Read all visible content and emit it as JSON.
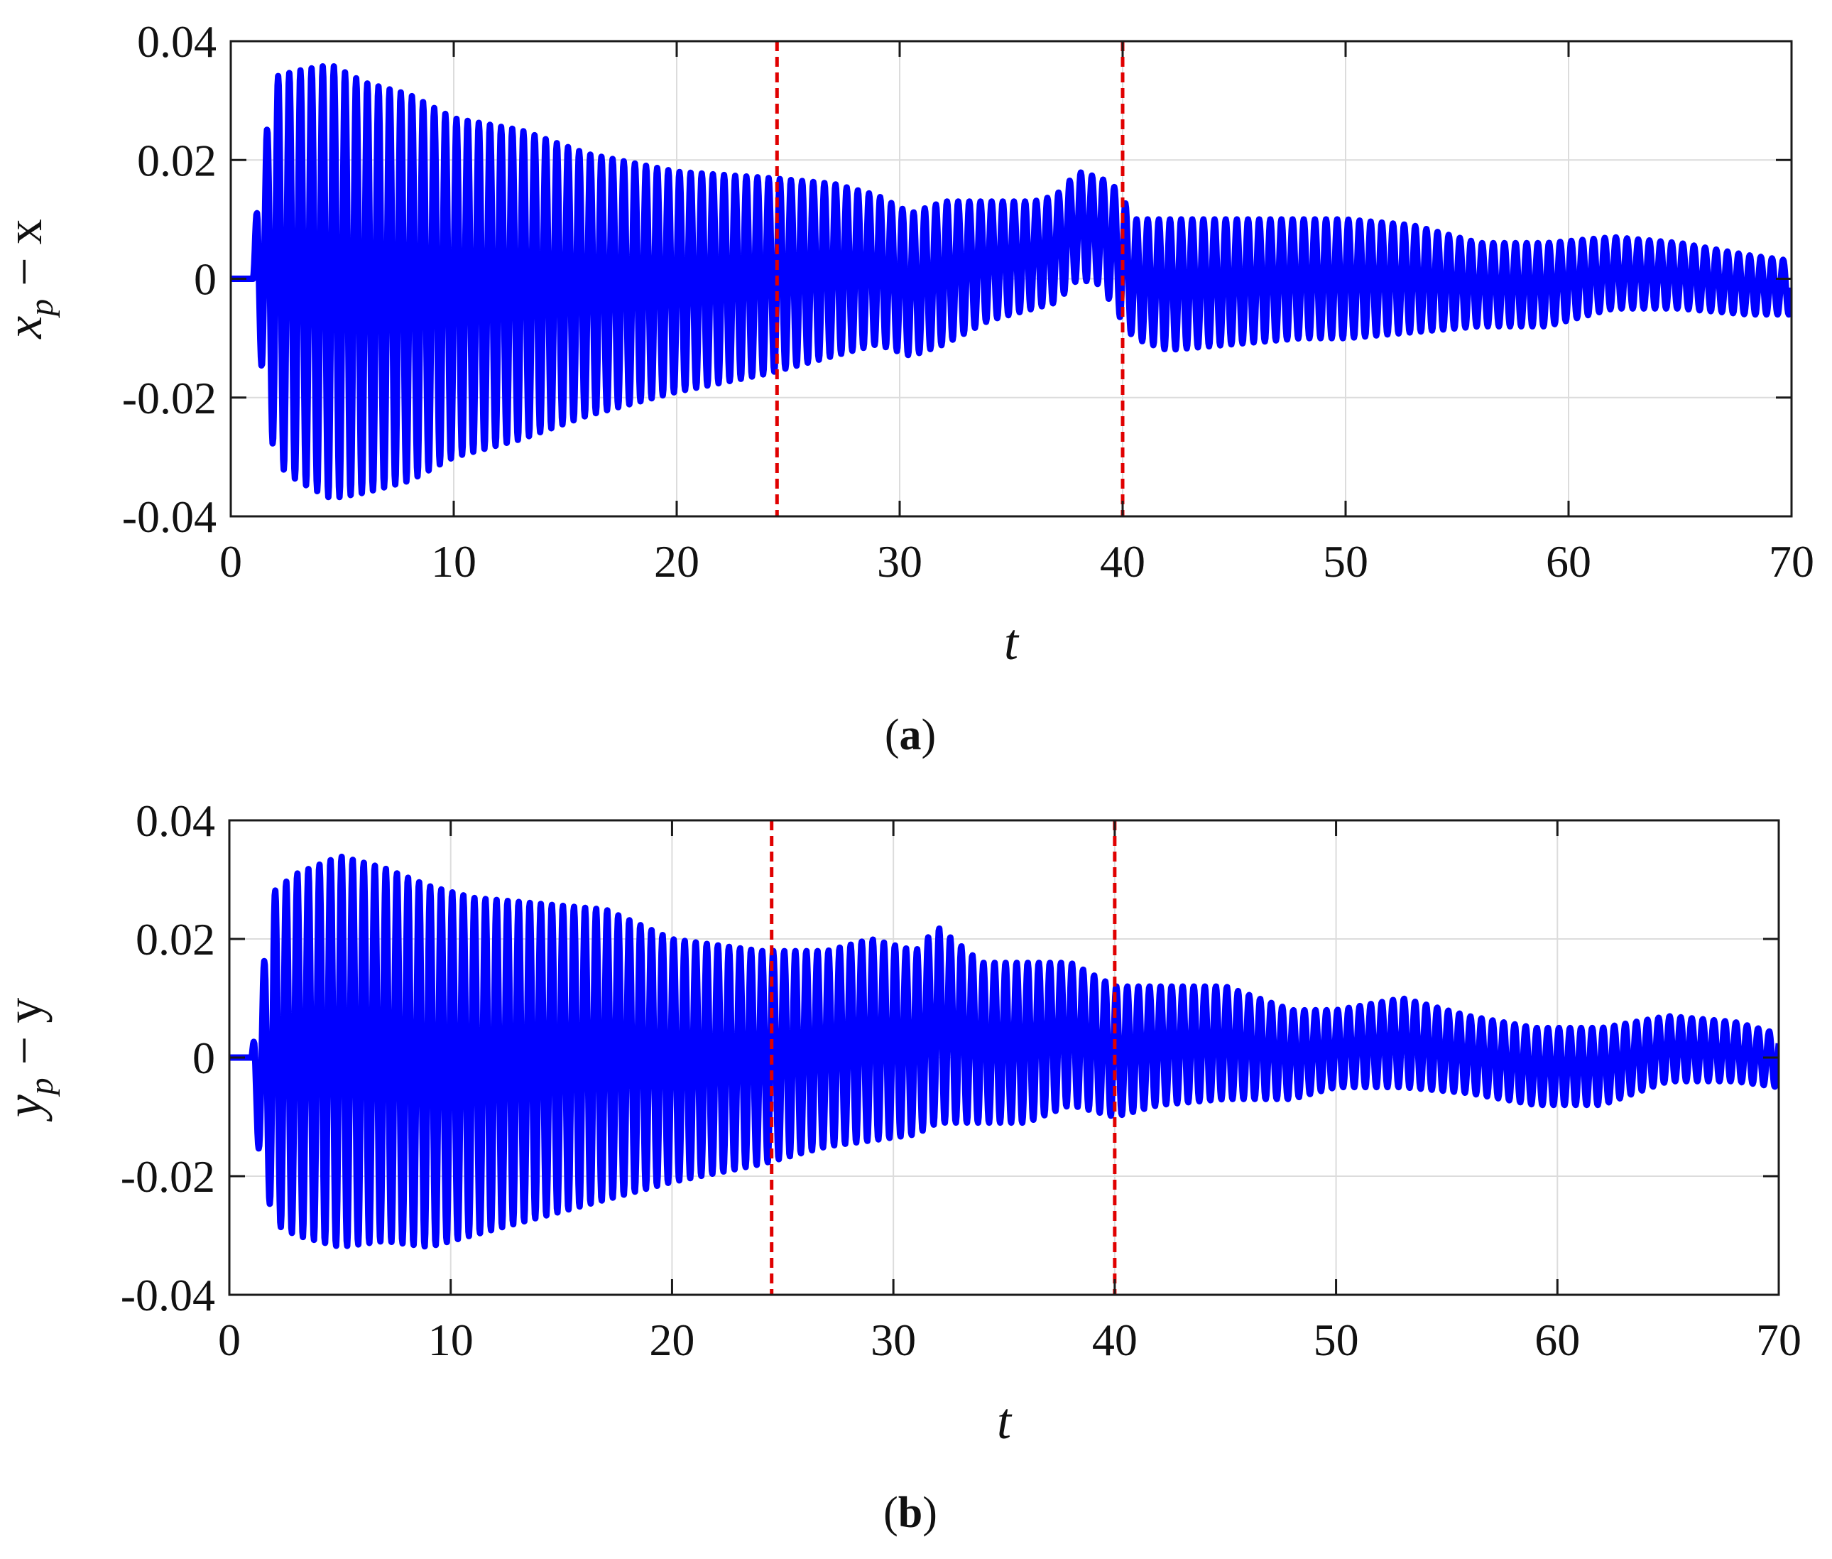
{
  "panels": [
    {
      "caption_letter": "a",
      "xlabel": "t",
      "ylabel_base": "x",
      "ylabel_sub": "p",
      "ylabel_rest": " − x"
    },
    {
      "caption_letter": "b",
      "xlabel": "t",
      "ylabel_base": "y",
      "ylabel_sub": "p",
      "ylabel_rest": " − y"
    }
  ],
  "colors": {
    "series": "#0000ff",
    "markers": "#e00000",
    "grid": "#dcdcdc",
    "axes": "#1a1a1a"
  },
  "chart_data": [
    {
      "type": "line",
      "xlabel": "t",
      "ylabel": "x_p − x",
      "xlim": [
        0,
        70
      ],
      "ylim": [
        -0.04,
        0.04
      ],
      "xticks": [
        0,
        10,
        20,
        30,
        40,
        50,
        60,
        70
      ],
      "xtick_labels": [
        "0",
        "10",
        "20",
        "30",
        "40",
        "50",
        "60",
        "70"
      ],
      "yticks": [
        -0.04,
        -0.02,
        0,
        0.02,
        0.04
      ],
      "ytick_labels": [
        "-0.04",
        "-0.02",
        "0",
        "0.02",
        "0.04"
      ],
      "grid": true,
      "vertical_markers": [
        24.5,
        40
      ],
      "series": [
        {
          "envelope_t": [
            0,
            1,
            1.2,
            2,
            3,
            4.5,
            6,
            8,
            10,
            13,
            16,
            20,
            24,
            27,
            29,
            30.5,
            32,
            34,
            36,
            37,
            38,
            39,
            39.8,
            40.5,
            42,
            45,
            48,
            50,
            53,
            56,
            59,
            62,
            65,
            68,
            70
          ],
          "envelope_upper": [
            0,
            0,
            0.015,
            0.034,
            0.035,
            0.036,
            0.033,
            0.031,
            0.027,
            0.025,
            0.021,
            0.018,
            0.017,
            0.016,
            0.014,
            0.011,
            0.013,
            0.013,
            0.013,
            0.014,
            0.018,
            0.017,
            0.015,
            0.01,
            0.01,
            0.01,
            0.01,
            0.01,
            0.009,
            0.006,
            0.006,
            0.007,
            0.006,
            0.004,
            0.003
          ],
          "envelope_lower": [
            0,
            0,
            -0.01,
            -0.031,
            -0.034,
            -0.037,
            -0.036,
            -0.034,
            -0.03,
            -0.027,
            -0.023,
            -0.019,
            -0.016,
            -0.013,
            -0.011,
            -0.013,
            -0.011,
            -0.007,
            -0.005,
            -0.004,
            0.0,
            -0.001,
            -0.006,
            -0.01,
            -0.012,
            -0.011,
            -0.01,
            -0.01,
            -0.009,
            -0.008,
            -0.008,
            -0.005,
            -0.005,
            -0.006,
            -0.006
          ]
        }
      ]
    },
    {
      "type": "line",
      "xlabel": "t",
      "ylabel": "y_p − y",
      "xlim": [
        0,
        70
      ],
      "ylim": [
        -0.04,
        0.04
      ],
      "xticks": [
        0,
        10,
        20,
        30,
        40,
        50,
        60,
        70
      ],
      "xtick_labels": [
        "0",
        "10",
        "20",
        "30",
        "40",
        "50",
        "60",
        "70"
      ],
      "yticks": [
        -0.04,
        -0.02,
        0,
        0.02,
        0.04
      ],
      "ytick_labels": [
        "-0.04",
        "-0.02",
        "0",
        "0.02",
        "0.04"
      ],
      "grid": true,
      "vertical_markers": [
        24.5,
        40
      ],
      "series": [
        {
          "envelope_t": [
            0,
            1,
            1.2,
            2,
            3,
            5,
            7,
            9,
            11,
            14,
            17,
            20,
            24,
            27,
            29,
            31,
            32,
            34,
            36,
            38,
            40,
            42,
            45,
            48,
            50,
            53,
            56,
            59,
            62,
            65,
            68,
            70
          ],
          "envelope_upper": [
            0,
            0,
            0.006,
            0.028,
            0.031,
            0.034,
            0.032,
            0.029,
            0.027,
            0.026,
            0.025,
            0.02,
            0.018,
            0.018,
            0.02,
            0.018,
            0.022,
            0.016,
            0.016,
            0.016,
            0.012,
            0.012,
            0.012,
            0.008,
            0.008,
            0.01,
            0.007,
            0.005,
            0.005,
            0.007,
            0.006,
            0.004
          ],
          "envelope_lower": [
            0,
            0,
            -0.013,
            -0.028,
            -0.03,
            -0.032,
            -0.031,
            -0.032,
            -0.03,
            -0.027,
            -0.024,
            -0.021,
            -0.018,
            -0.015,
            -0.014,
            -0.013,
            -0.011,
            -0.011,
            -0.011,
            -0.008,
            -0.01,
            -0.008,
            -0.007,
            -0.007,
            -0.005,
            -0.005,
            -0.006,
            -0.008,
            -0.008,
            -0.004,
            -0.004,
            -0.005
          ]
        }
      ]
    }
  ]
}
